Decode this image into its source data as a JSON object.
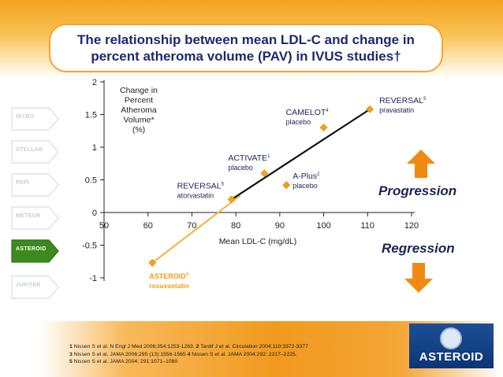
{
  "title": {
    "line1": "The relationship between mean LDL-C and  change in",
    "line2": "percent atheroma volume (PAV) in IVUS studies†"
  },
  "nav": {
    "items": [
      {
        "label": "INTRO",
        "active": false
      },
      {
        "label": "STELLAR",
        "active": false
      },
      {
        "label": "PEPI",
        "active": false
      },
      {
        "label": "METEOR",
        "active": false
      },
      {
        "label": "ASTEROID",
        "active": true
      },
      {
        "label": "JUPITER",
        "active": false
      }
    ]
  },
  "labels": {
    "progression": "Progression",
    "regression": "Regression"
  },
  "colors": {
    "accent": "#f39c12",
    "arrow": "#f28a12",
    "navy": "#1b2457",
    "nav_active": "#3c8a1e"
  },
  "chart_data": {
    "type": "scatter",
    "ylabel_lines": [
      "Change in",
      "Percent",
      "Atheroma",
      "Volume*",
      "(%)"
    ],
    "xlabel": "Mean LDL-C (mg/dL)",
    "xlim": [
      50,
      120
    ],
    "ylim": [
      -1,
      2
    ],
    "xticks": [
      50,
      60,
      70,
      80,
      90,
      100,
      110,
      120
    ],
    "yticks": [
      {
        "value": 2,
        "label": "2"
      },
      {
        "value": 1.5,
        "label": "1.5"
      },
      {
        "value": 1,
        "label": "1"
      },
      {
        "value": 0.5,
        "label": "0.5"
      },
      {
        "value": 0,
        "label": "0"
      },
      {
        "value": -0.5,
        "label": "-0.5"
      },
      {
        "value": -1,
        "label": "-1"
      }
    ],
    "points": [
      {
        "name": "ASTEROID",
        "sup": "3",
        "sub": "rosuvastatin",
        "x": 61,
        "y": -0.77,
        "highlight": true
      },
      {
        "name": "REVERSAL",
        "sup": "5",
        "sub": "atorvastatin",
        "x": 79,
        "y": 0.2,
        "highlight": false
      },
      {
        "name": "ACTIVATE",
        "sup": "1",
        "sub": "placebo",
        "x": 86.5,
        "y": 0.6,
        "highlight": false
      },
      {
        "name": "A-Plus",
        "sup": "2",
        "sub": "placebo",
        "x": 91.5,
        "y": 0.42,
        "highlight": false
      },
      {
        "name": "CAMELOT",
        "sup": "4",
        "sub": "placebo",
        "x": 100,
        "y": 1.3,
        "highlight": false
      },
      {
        "name": "REVERSAL",
        "sup": "5",
        "sub": "pravastatin",
        "x": 110.5,
        "y": 1.58,
        "highlight": false
      }
    ],
    "trend_black": {
      "x": [
        79,
        110.5
      ],
      "y": [
        0.2,
        1.58
      ]
    },
    "trend_orange": {
      "x": [
        61,
        81
      ],
      "y": [
        -0.77,
        0.26
      ]
    }
  },
  "references": [
    {
      "n": "1",
      "text": " Nissen S et al. N Engl J Med 2006;354:1253-1263.  ",
      "n2": "2",
      "text2": " Tardif J et al. Circulation 2004;110:3372-3377"
    },
    {
      "n": "3",
      "text": " Nissen S et al. JAMA 2006;295 (13):1556-1565  ",
      "n2": "4",
      "text2": " Nissen S et al. JAMA 2004;292: 2217–2225."
    },
    {
      "n": "5",
      "text": " Nissen S et al. JAMA 2004; 291:1071–1080",
      "n2": "",
      "text2": ""
    }
  ],
  "logo": {
    "text": "ASTEROID"
  }
}
